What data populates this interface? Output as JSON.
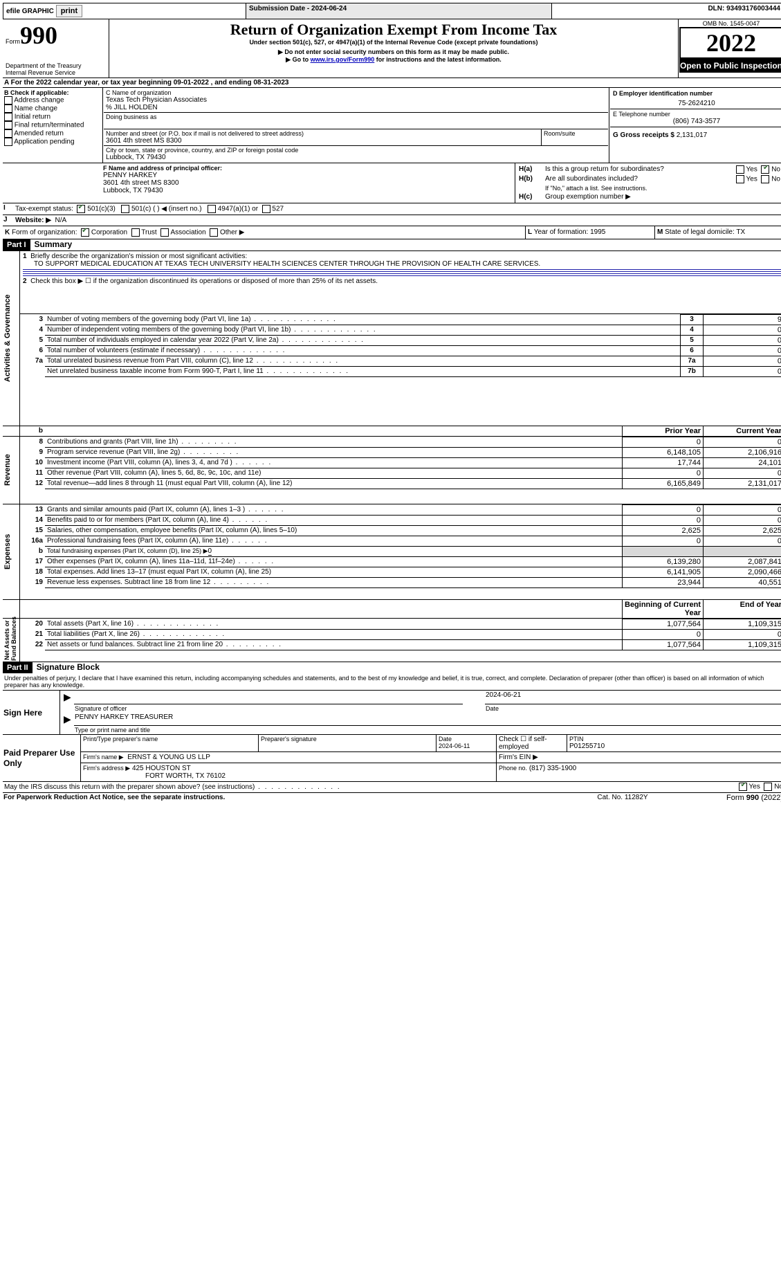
{
  "topbar": {
    "efile": "efile GRAPHIC",
    "print": "print",
    "subDateLabel": "Submission Date - ",
    "subDate": "2024-06-24",
    "dlnLabel": "DLN: ",
    "dln": "93493176003444"
  },
  "header": {
    "formPrefix": "Form",
    "formNumber": "990",
    "title": "Return of Organization Exempt From Income Tax",
    "subtitle": "Under section 501(c), 527, or 4947(a)(1) of the Internal Revenue Code (except private foundations)",
    "note1": "▶ Do not enter social security numbers on this form as it may be made public.",
    "note2a": "▶ Go to ",
    "note2link": "www.irs.gov/Form990",
    "note2b": " for instructions and the latest information.",
    "dept": "Department of the Treasury",
    "irs": "Internal Revenue Service",
    "ombLabel": "OMB No. ",
    "omb": "1545-0047",
    "year": "2022",
    "openBadge": "Open to Public Inspection"
  },
  "lineA": {
    "text1": "For the 2022 calendar year, or tax year beginning ",
    "begin": "09-01-2022",
    "text2": "   , and ending ",
    "end": "08-31-2023"
  },
  "boxB": {
    "title": "B Check if applicable:",
    "items": [
      "Address change",
      "Name change",
      "Initial return",
      "Final return/terminated",
      "Amended return",
      "Application pending"
    ]
  },
  "boxC": {
    "nameLabel1": "C Name of organization",
    "orgName": "Texas Tech Physician Associates",
    "care": "% JILL HOLDEN",
    "dbaLabel": "Doing business as",
    "streetLabel": "Number and street (or P.O. box if mail is not delivered to street address)",
    "street": "3601 4th street MS 8300",
    "roomLabel": "Room/suite",
    "cityLabel": "City or town, state or province, country, and ZIP or foreign postal code",
    "city": "Lubbock, TX  79430"
  },
  "boxD": {
    "label": "D Employer identification number",
    "value": "75-2624210"
  },
  "boxE": {
    "label": "E Telephone number",
    "value": "(806) 743-3577"
  },
  "boxG": {
    "label": "G Gross receipts $",
    "value": "2,131,017"
  },
  "boxF": {
    "label": "F  Name and address of principal officer:",
    "name": "PENNY HARKEY",
    "addr1": "3601 4th street MS 8300",
    "addr2": "Lubbock, TX  79430"
  },
  "boxH": {
    "aLabel": "H(a)",
    "aText": "Is this a group return for subordinates?",
    "aYes": "Yes",
    "aNo": "No",
    "bLabel": "H(b)",
    "bText": "Are all subordinates included?",
    "bNote": "If \"No,\" attach a list. See instructions.",
    "cLabel": "H(c)",
    "cText": "Group exemption number ▶"
  },
  "lineI": {
    "label": "I",
    "text": "Tax-exempt status:",
    "c501c3": "501(c)(3)",
    "c501c": "501(c) (  ) ◀ (insert no.)",
    "c4947": "4947(a)(1) or",
    "c527": "527"
  },
  "lineJ": {
    "label": "J",
    "text": "Website: ▶",
    "value": "N/A"
  },
  "lineK": {
    "label": "K",
    "text": "Form of organization:",
    "corp": "Corporation",
    "trust": "Trust",
    "assoc": "Association",
    "other": "Other ▶"
  },
  "lineL": {
    "label": "L",
    "text": "Year of formation:",
    "value": "1995"
  },
  "lineM": {
    "label": "M",
    "text": "State of legal domicile:",
    "value": "TX"
  },
  "part1": {
    "hdr": "Part I",
    "title": "Summary",
    "l1Label": "1",
    "l1Text": "Briefly describe the organization's mission or most significant activities:",
    "l1Value": "TO SUPPORT MEDICAL EDUCATION AT TEXAS TECH UNIVERSITY HEALTH SCIENCES CENTER THROUGH THE PROVISION OF HEALTH CARE SERVICES.",
    "l2Label": "2",
    "l2Text": "Check this box ▶ ☐ if the organization discontinued its operations or disposed of more than 25% of its net assets.",
    "rows": [
      {
        "n": "3",
        "t": "Number of voting members of the governing body (Part VI, line 1a)",
        "box": "3",
        "v": "9"
      },
      {
        "n": "4",
        "t": "Number of independent voting members of the governing body (Part VI, line 1b)",
        "box": "4",
        "v": "0"
      },
      {
        "n": "5",
        "t": "Total number of individuals employed in calendar year 2022 (Part V, line 2a)",
        "box": "5",
        "v": "0"
      },
      {
        "n": "6",
        "t": "Total number of volunteers (estimate if necessary)",
        "box": "6",
        "v": "0"
      },
      {
        "n": "7a",
        "t": "Total unrelated business revenue from Part VIII, column (C), line 12",
        "box": "7a",
        "v": "0"
      },
      {
        "n": "",
        "t": "Net unrelated business taxable income from Form 990-T, Part I, line 11",
        "box": "7b",
        "v": "0"
      }
    ],
    "priorYear": "Prior Year",
    "currentYear": "Current Year",
    "revenue": [
      {
        "n": "8",
        "t": "Contributions and grants (Part VIII, line 1h)",
        "p": "0",
        "c": "0",
        "dots": "dotsMid"
      },
      {
        "n": "9",
        "t": "Program service revenue (Part VIII, line 2g)",
        "p": "6,148,105",
        "c": "2,106,916",
        "dots": "dotsMid"
      },
      {
        "n": "10",
        "t": "Investment income (Part VIII, column (A), lines 3, 4, and 7d )",
        "p": "17,744",
        "c": "24,101",
        "dots": "dotsShort"
      },
      {
        "n": "11",
        "t": "Other revenue (Part VIII, column (A), lines 5, 6d, 8c, 9c, 10c, and 11e)",
        "p": "0",
        "c": "0",
        "dots": ""
      },
      {
        "n": "12",
        "t": "Total revenue—add lines 8 through 11 (must equal Part VIII, column (A), line 12)",
        "p": "6,165,849",
        "c": "2,131,017",
        "dots": ""
      }
    ],
    "expenses": [
      {
        "n": "13",
        "t": "Grants and similar amounts paid (Part IX, column (A), lines 1–3 )",
        "p": "0",
        "c": "0",
        "dots": "dotsShort"
      },
      {
        "n": "14",
        "t": "Benefits paid to or for members (Part IX, column (A), line 4)",
        "p": "0",
        "c": "0",
        "dots": "dotsShort"
      },
      {
        "n": "15",
        "t": "Salaries, other compensation, employee benefits (Part IX, column (A), lines 5–10)",
        "p": "2,625",
        "c": "2,625",
        "dots": ""
      },
      {
        "n": "16a",
        "t": "Professional fundraising fees (Part IX, column (A), line 11e)",
        "p": "0",
        "c": "0",
        "dots": "dotsShort"
      },
      {
        "n": "b",
        "t": "Total fundraising expenses (Part IX, column (D), line 25) ▶",
        "sp": "0",
        "shaded": true
      },
      {
        "n": "17",
        "t": "Other expenses (Part IX, column (A), lines 11a–11d, 11f–24e)",
        "p": "6,139,280",
        "c": "2,087,841",
        "dots": "dotsShort"
      },
      {
        "n": "18",
        "t": "Total expenses. Add lines 13–17 (must equal Part IX, column (A), line 25)",
        "p": "6,141,905",
        "c": "2,090,466",
        "dots": ""
      },
      {
        "n": "19",
        "t": "Revenue less expenses. Subtract line 18 from line 12",
        "p": "23,944",
        "c": "40,551",
        "dots": "dotsMid"
      }
    ],
    "beginYear": "Beginning of Current Year",
    "endYear": "End of Year",
    "netassets": [
      {
        "n": "20",
        "t": "Total assets (Part X, line 16)",
        "p": "1,077,564",
        "c": "1,109,315",
        "dots": "dots"
      },
      {
        "n": "21",
        "t": "Total liabilities (Part X, line 26)",
        "p": "0",
        "c": "0",
        "dots": "dots"
      },
      {
        "n": "22",
        "t": "Net assets or fund balances. Subtract line 21 from line 20",
        "p": "1,077,564",
        "c": "1,109,315",
        "dots": "dotsMid"
      }
    ],
    "sideA": "Activities & Governance",
    "sideR": "Revenue",
    "sideE": "Expenses",
    "sideN": "Net Assets or\nFund Balances"
  },
  "part2": {
    "hdr": "Part II",
    "title": "Signature Block",
    "decl": "Under penalties of perjury, I declare that I have examined this return, including accompanying schedules and statements, and to the best of my knowledge and belief, it is true, correct, and complete. Declaration of preparer (other than officer) is based on all information of which preparer has any knowledge.",
    "signHere": "Sign Here",
    "sigOfficer": "Signature of officer",
    "sigDate": "Date",
    "sigDateVal": "2024-06-21",
    "printedName": "PENNY HARKEY  TREASURER",
    "printedNameLabel": "Type or print name and title",
    "paid": "Paid Preparer Use Only",
    "preparerNameLabel": "Print/Type preparer's name",
    "preparerSigLabel": "Preparer's signature",
    "dateLabel": "Date",
    "dateVal": "2024-06-11",
    "checkLabel": "Check ☐ if self-employed",
    "ptinLabel": "PTIN",
    "ptin": "P01255710",
    "firmNameLabel": "Firm's name   ▶",
    "firmName": "ERNST & YOUNG US LLP",
    "firmEinLabel": "Firm's EIN ▶",
    "firmAddrLabel": "Firm's address ▶",
    "firmAddr1": "425 HOUSTON ST",
    "firmAddr2": "FORT WORTH, TX  76102",
    "phoneLabel": "Phone no.",
    "phone": "(817) 335-1900",
    "mayIRS": "May the IRS discuss this return with the preparer shown above? (see instructions)",
    "yes": "Yes",
    "no": "No"
  },
  "footer": {
    "pra": "For Paperwork Reduction Act Notice, see the separate instructions.",
    "cat": "Cat. No. 11282Y",
    "form": "Form ",
    "formNum": "990",
    "formYear": " (2022)"
  }
}
